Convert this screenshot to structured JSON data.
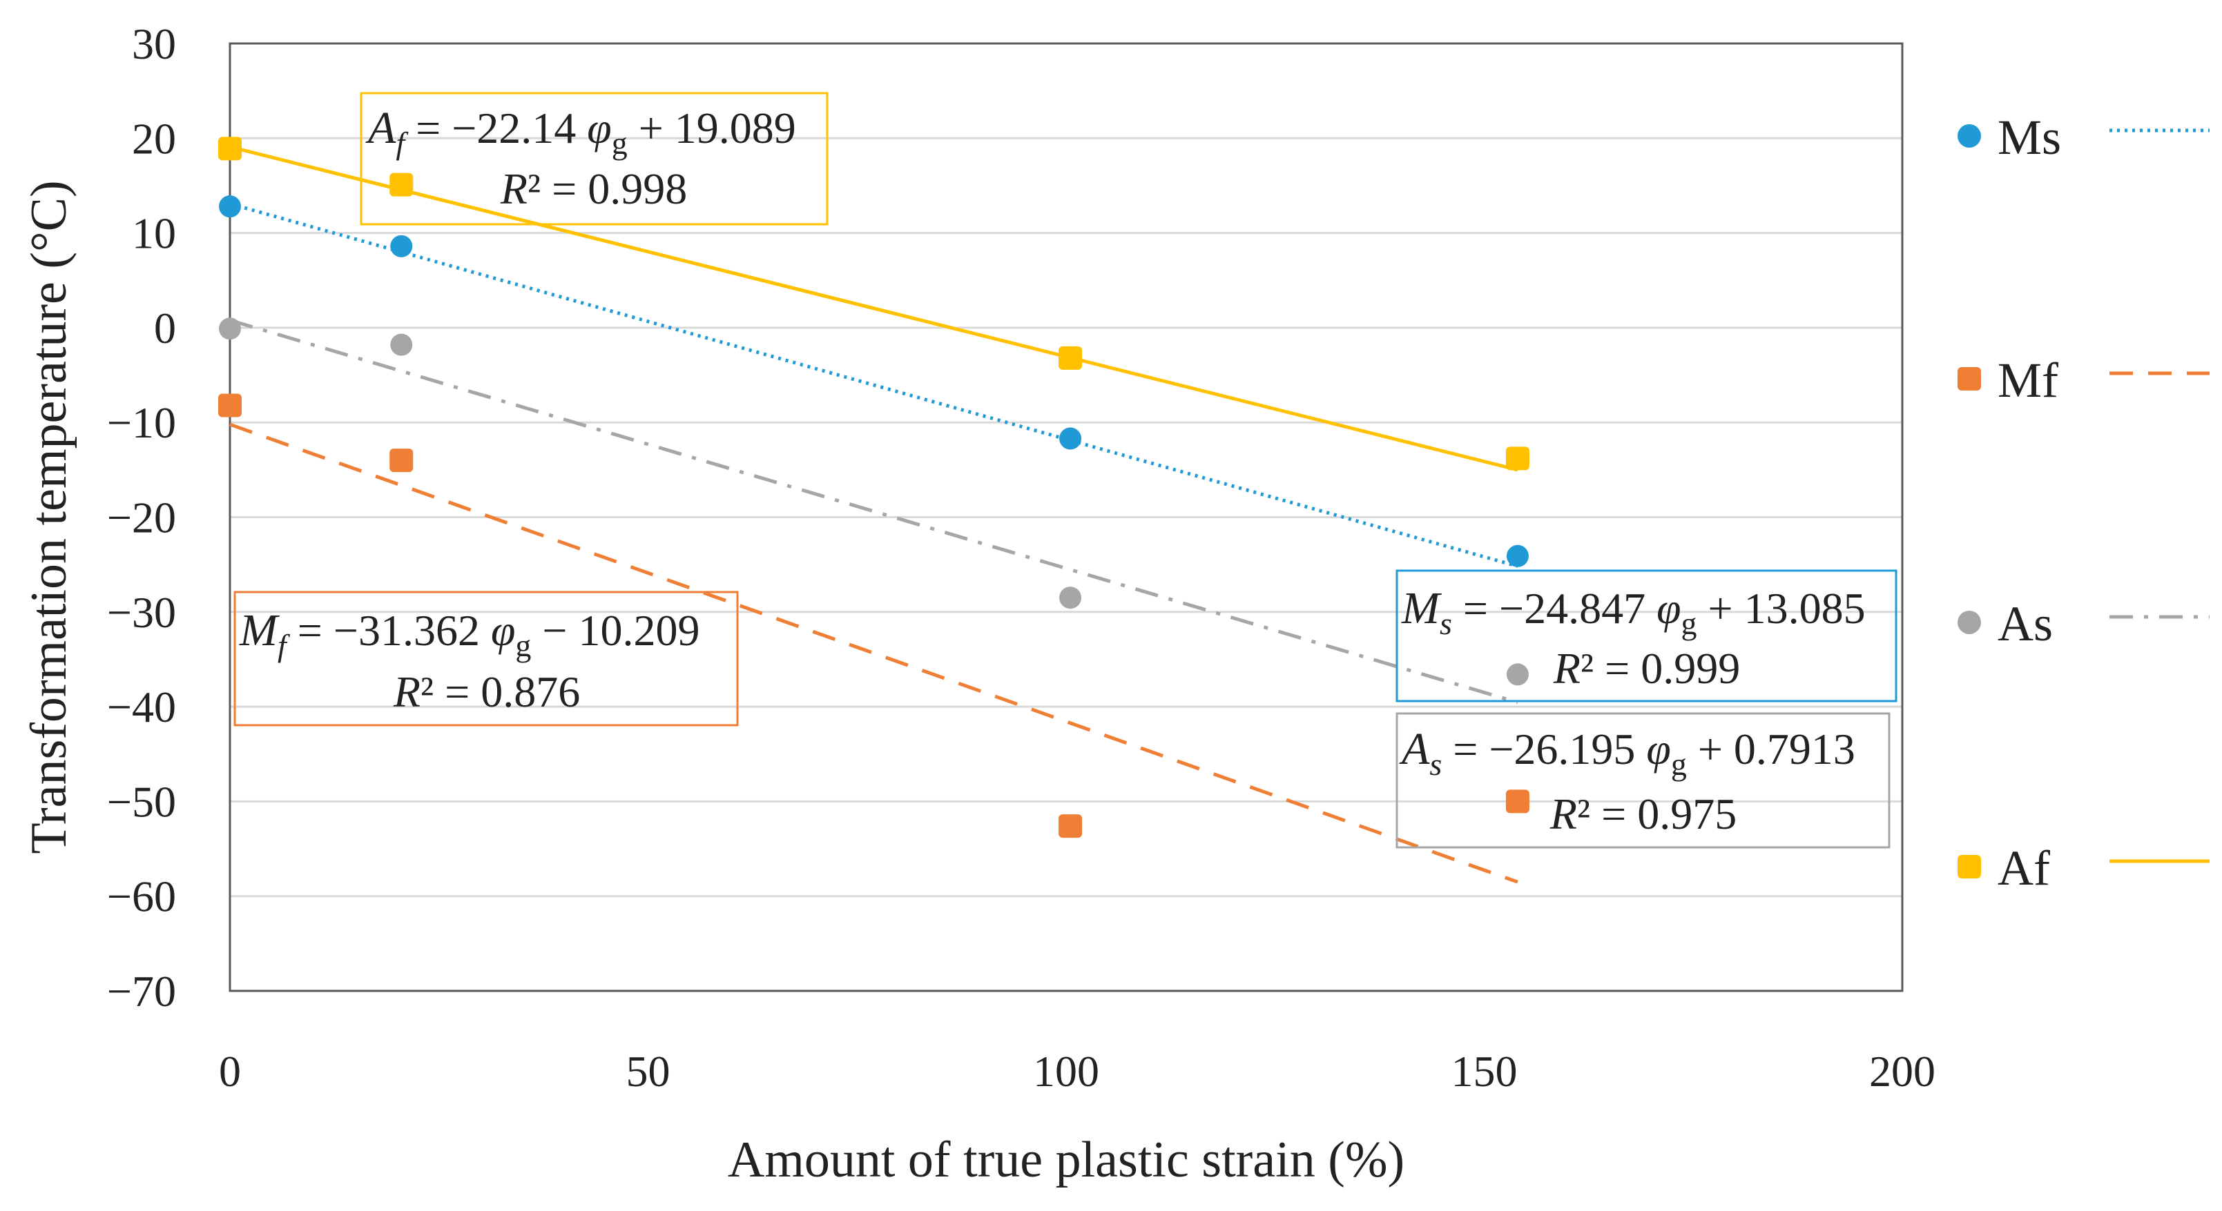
{
  "chart_data": {
    "type": "scatter",
    "xlabel": "Amount of true plastic strain (%)",
    "ylabel": "Transformation temperature (°C)",
    "xlim": [
      0,
      200
    ],
    "ylim": [
      -70,
      30
    ],
    "xticks": [
      0,
      50,
      100,
      150,
      200
    ],
    "yticks": [
      30,
      20,
      10,
      0,
      -10,
      -20,
      -30,
      -40,
      -50,
      -60,
      -70
    ],
    "xtick_labels": [
      "0",
      "50",
      "100",
      "150",
      "200"
    ],
    "ytick_labels": [
      "30",
      "20",
      "10",
      "0",
      "−10",
      "−20",
      "−30",
      "−40",
      "−50",
      "−60",
      "−70"
    ],
    "grid": "horizontal",
    "legend_position": "right",
    "series": [
      {
        "name": "Ms",
        "color": "#1f9ad6",
        "marker": "circle",
        "trendline": "dotted",
        "x": [
          0,
          20.5,
          100.5,
          154
        ],
        "y": [
          12.8,
          8.6,
          -11.7,
          -24.1
        ],
        "fit": {
          "slope": -24.847,
          "intercept": 13.085
        },
        "fit_x_range": [
          0,
          154
        ],
        "equation": {
          "var": "M",
          "sub": "s",
          "body": " = −24.847 ",
          "phi": "φ",
          "phisub": "g",
          "tail": " + 13.085"
        },
        "r2": "R² = 0.999"
      },
      {
        "name": "Mf",
        "color": "#f07f36",
        "marker": "square",
        "trendline": "dashed",
        "x": [
          0,
          20.5,
          100.5,
          154
        ],
        "y": [
          -8.2,
          -14,
          -52.6,
          -50
        ],
        "fit": {
          "slope": -31.362,
          "intercept": -10.209
        },
        "fit_x_range": [
          0,
          154
        ],
        "equation": {
          "var": "M",
          "sub": "f",
          "body": " = −31.362 ",
          "phi": "φ",
          "phisub": "g",
          "tail": " − 10.209"
        },
        "r2": "R² = 0.876"
      },
      {
        "name": "As",
        "color": "#a6a6a6",
        "marker": "circle",
        "trendline": "dashdot",
        "x": [
          0,
          20.5,
          100.5,
          154
        ],
        "y": [
          -0.1,
          -1.8,
          -28.5,
          -36.6
        ],
        "fit": {
          "slope": -26.195,
          "intercept": 0.7913
        },
        "fit_x_range": [
          0,
          154
        ],
        "equation": {
          "var": "A",
          "sub": "s",
          "body": " = −26.195 ",
          "phi": "φ",
          "phisub": "g",
          "tail": " + 0.7913"
        },
        "r2": "R² = 0.975"
      },
      {
        "name": "Af",
        "color": "#ffc000",
        "marker": "square",
        "trendline": "solid",
        "x": [
          0,
          20.5,
          100.5,
          154
        ],
        "y": [
          18.9,
          15.1,
          -3.2,
          -13.8
        ],
        "fit": {
          "slope": -22.14,
          "intercept": 19.089
        },
        "fit_x_range": [
          0,
          154
        ],
        "equation": {
          "var": "A",
          "sub": "f",
          "body": " = −22.14 ",
          "phi": "φ",
          "phisub": "g",
          "tail": " + 19.089"
        },
        "r2": "R² = 0.998"
      }
    ]
  }
}
